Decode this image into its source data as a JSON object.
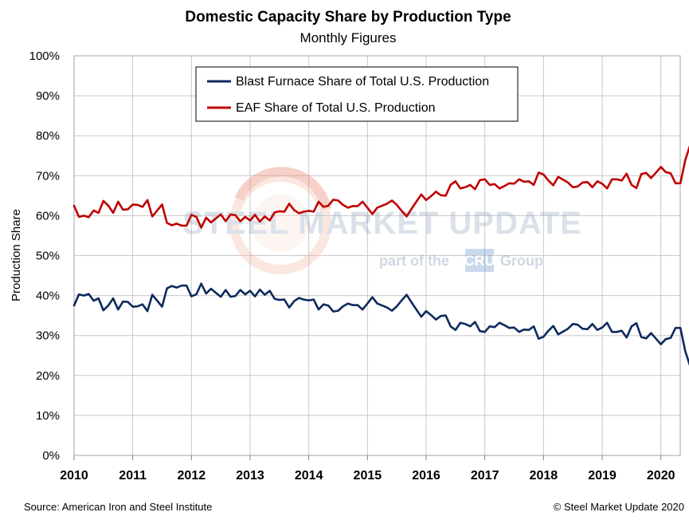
{
  "chart_data": {
    "type": "line",
    "title": "Domestic Capacity Share by Production Type",
    "subtitle": "Monthly Figures",
    "xlabel": "",
    "ylabel": "Production Share",
    "xlim": [
      2010,
      2020.33
    ],
    "ylim": [
      0,
      100
    ],
    "y_ticks": [
      "0%",
      "10%",
      "20%",
      "30%",
      "40%",
      "50%",
      "60%",
      "70%",
      "80%",
      "90%",
      "100%"
    ],
    "x_ticks": [
      "2010",
      "2011",
      "2012",
      "2013",
      "2014",
      "2015",
      "2016",
      "2017",
      "2018",
      "2019",
      "2020"
    ],
    "grid": "vertical and horizontal",
    "legend_placement": "top-center",
    "series": [
      {
        "name": "Blast Furnace Share of Total U.S. Production",
        "color": "#0d2a5c",
        "values": [
          37.5,
          40.3,
          40.0,
          40.4,
          38.7,
          39.3,
          36.3,
          37.5,
          39.3,
          36.5,
          38.5,
          38.4,
          37.2,
          37.3,
          37.8,
          36.1,
          40.2,
          38.7,
          37.2,
          41.8,
          42.4,
          42.0,
          42.5,
          42.5,
          39.8,
          40.3,
          43.0,
          40.5,
          41.7,
          40.7,
          39.7,
          41.4,
          39.7,
          39.9,
          41.4,
          40.3,
          41.2,
          39.8,
          41.5,
          40.2,
          41.2,
          39.2,
          38.9,
          39.0,
          37.0,
          38.6,
          39.4,
          39.0,
          38.8,
          39.0,
          36.5,
          37.8,
          37.5,
          36.0,
          36.2,
          37.3,
          38.0,
          37.6,
          37.6,
          36.5,
          38.0,
          39.6,
          38.0,
          37.5,
          37.0,
          36.2,
          37.3,
          38.8,
          40.2,
          38.3,
          36.5,
          34.7,
          36.1,
          35.1,
          34.0,
          34.9,
          35.0,
          32.3,
          31.4,
          33.2,
          32.9,
          32.3,
          33.4,
          31.1,
          30.9,
          32.3,
          32.1,
          33.2,
          32.6,
          31.9,
          32.0,
          30.9,
          31.5,
          31.4,
          32.3,
          29.2,
          29.7,
          31.2,
          32.4,
          30.3,
          31.0,
          31.7,
          32.9,
          32.7,
          31.7,
          31.6,
          32.9,
          31.4,
          32.0,
          33.2,
          30.9,
          30.9,
          31.2,
          29.5,
          32.3,
          33.1,
          29.6,
          29.3,
          30.6,
          29.2,
          27.8,
          29.1,
          29.4,
          31.9,
          31.9,
          26.0,
          22.3
        ]
      },
      {
        "name": "EAF Share of Total U.S. Production",
        "color": "#c00000",
        "values": [
          62.5,
          59.7,
          60.0,
          59.6,
          61.3,
          60.7,
          63.7,
          62.5,
          60.7,
          63.5,
          61.5,
          61.6,
          62.8,
          62.7,
          62.2,
          63.9,
          59.8,
          61.3,
          62.8,
          58.2,
          57.6,
          58.0,
          57.5,
          57.5,
          60.2,
          59.7,
          57.0,
          59.5,
          58.3,
          59.3,
          60.3,
          58.6,
          60.3,
          60.1,
          58.6,
          59.7,
          58.8,
          60.2,
          58.5,
          59.8,
          58.8,
          60.8,
          61.1,
          61.0,
          63.0,
          61.4,
          60.6,
          61.0,
          61.2,
          61.0,
          63.5,
          62.2,
          62.5,
          64.0,
          63.8,
          62.7,
          62.0,
          62.4,
          62.4,
          63.5,
          62.0,
          60.4,
          62.0,
          62.5,
          63.0,
          63.8,
          62.7,
          61.2,
          59.8,
          61.7,
          63.5,
          65.3,
          63.9,
          64.9,
          66.0,
          65.1,
          65.0,
          67.7,
          68.6,
          66.8,
          67.1,
          67.7,
          66.6,
          68.9,
          69.1,
          67.7,
          67.9,
          66.8,
          67.4,
          68.1,
          68.0,
          69.1,
          68.5,
          68.6,
          67.7,
          70.8,
          70.3,
          68.8,
          67.6,
          69.7,
          69.0,
          68.3,
          67.1,
          67.3,
          68.3,
          68.4,
          67.1,
          68.6,
          68.0,
          66.8,
          69.1,
          69.1,
          68.8,
          70.5,
          67.7,
          66.9,
          70.4,
          70.7,
          69.4,
          70.8,
          72.2,
          70.9,
          70.6,
          68.1,
          68.1,
          74.0,
          77.7
        ]
      }
    ]
  },
  "watermark": {
    "brand": "STEEL MARKET UPDATE",
    "tagline_prefix": "part of the",
    "tagline_logo": "CRU",
    "tagline_suffix": "Group"
  },
  "footer": {
    "source": "Source: American Iron and Steel Institute",
    "copyright": "© Steel Market Update 2020"
  }
}
